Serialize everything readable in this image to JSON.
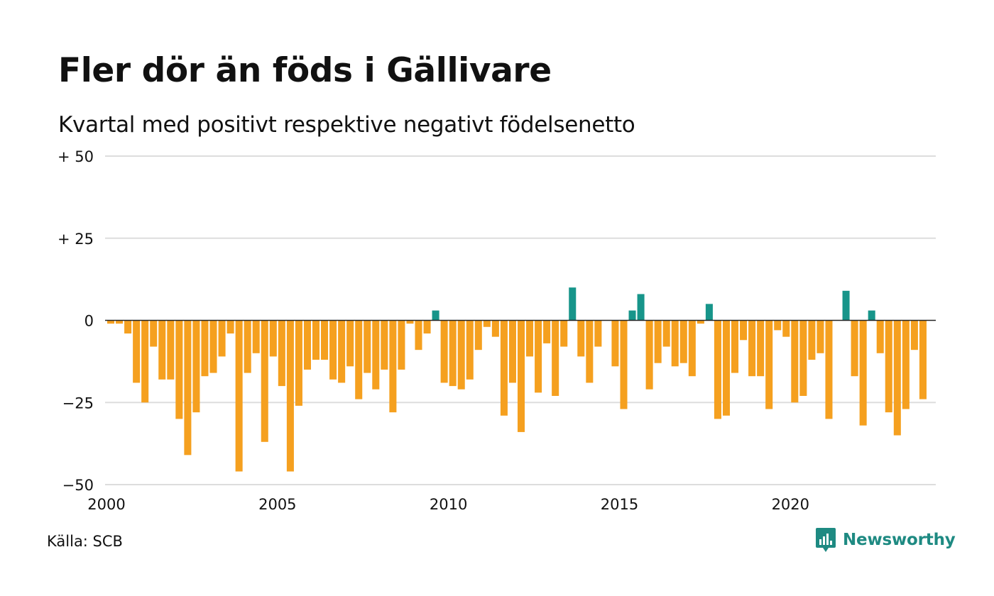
{
  "title": "Fler dör än föds i Gällivare",
  "subtitle": "Kvartal med positivt respektive negativt födelsenetto",
  "source": "Källa: SCB",
  "brand": {
    "name": "Newsworthy",
    "icon": "newsworthy-logo-icon"
  },
  "colors": {
    "negative": "#f5a01f",
    "positive": "#17958a",
    "grid": "#dddddd",
    "baseline": "#222222",
    "brand": "#1e8a82"
  },
  "chart_data": {
    "type": "bar",
    "title": "Fler dör än föds i Gällivare",
    "subtitle": "Kvartal med positivt respektive negativt födelsenetto",
    "xlabel": "",
    "ylabel": "",
    "xlim": [
      2000,
      2024.25
    ],
    "ylim": [
      -50,
      50
    ],
    "grid": true,
    "y_ticks": [
      {
        "value": 50,
        "label": "+ 50"
      },
      {
        "value": 25,
        "label": "+ 25"
      },
      {
        "value": 0,
        "label": "0"
      },
      {
        "value": -25,
        "label": "−25"
      },
      {
        "value": -50,
        "label": "−50"
      }
    ],
    "x_ticks": [
      {
        "value": 2000,
        "label": "2000"
      },
      {
        "value": 2005,
        "label": "2005"
      },
      {
        "value": 2010,
        "label": "2010"
      },
      {
        "value": 2015,
        "label": "2015"
      },
      {
        "value": 2020,
        "label": "2020"
      }
    ],
    "categories": [
      "2000 K1",
      "2000 K2",
      "2000 K3",
      "2000 K4",
      "2001 K1",
      "2001 K2",
      "2001 K3",
      "2001 K4",
      "2002 K1",
      "2002 K2",
      "2002 K3",
      "2002 K4",
      "2003 K1",
      "2003 K2",
      "2003 K3",
      "2003 K4",
      "2004 K1",
      "2004 K2",
      "2004 K3",
      "2004 K4",
      "2005 K1",
      "2005 K2",
      "2005 K3",
      "2005 K4",
      "2006 K1",
      "2006 K2",
      "2006 K3",
      "2006 K4",
      "2007 K1",
      "2007 K2",
      "2007 K3",
      "2007 K4",
      "2008 K1",
      "2008 K2",
      "2008 K3",
      "2008 K4",
      "2009 K1",
      "2009 K2",
      "2009 K3",
      "2009 K4",
      "2010 K1",
      "2010 K2",
      "2010 K3",
      "2010 K4",
      "2011 K1",
      "2011 K2",
      "2011 K3",
      "2011 K4",
      "2012 K1",
      "2012 K2",
      "2012 K3",
      "2012 K4",
      "2013 K1",
      "2013 K2",
      "2013 K3",
      "2013 K4",
      "2014 K1",
      "2014 K2",
      "2014 K3",
      "2014 K4",
      "2015 K1",
      "2015 K2",
      "2015 K3",
      "2015 K4",
      "2016 K1",
      "2016 K2",
      "2016 K3",
      "2016 K4",
      "2017 K1",
      "2017 K2",
      "2017 K3",
      "2017 K4",
      "2018 K1",
      "2018 K2",
      "2018 K3",
      "2018 K4",
      "2019 K1",
      "2019 K2",
      "2019 K3",
      "2019 K4",
      "2020 K1",
      "2020 K2",
      "2020 K3",
      "2020 K4",
      "2021 K1",
      "2021 K2",
      "2021 K3",
      "2021 K4",
      "2022 K1",
      "2022 K2",
      "2022 K3",
      "2022 K4",
      "2023 K1",
      "2023 K2",
      "2023 K3",
      "2023 K4",
      "2024 K1"
    ],
    "values": [
      -1,
      -1,
      -4,
      -19,
      -25,
      -8,
      -18,
      -18,
      -30,
      -41,
      -28,
      -17,
      -16,
      -11,
      -4,
      -46,
      -16,
      -10,
      -37,
      -11,
      -20,
      -46,
      -26,
      -15,
      -12,
      -12,
      -18,
      -19,
      -14,
      -24,
      -16,
      -21,
      -15,
      -28,
      -15,
      -1,
      -9,
      -4,
      3,
      -19,
      -20,
      -21,
      -18,
      -9,
      -2,
      -5,
      -29,
      -19,
      -34,
      -11,
      -22,
      -7,
      -23,
      -8,
      10,
      -11,
      -19,
      -8,
      0,
      -14,
      -27,
      3,
      8,
      -21,
      -13,
      -8,
      -14,
      -13,
      -17,
      -1,
      5,
      -30,
      -29,
      -16,
      -6,
      -17,
      -17,
      -27,
      -3,
      -5,
      -25,
      -23,
      -12,
      -10,
      -30,
      0,
      9,
      -17,
      -32,
      3,
      -10,
      -28,
      -35,
      -27,
      -9,
      -24,
      0
    ]
  }
}
